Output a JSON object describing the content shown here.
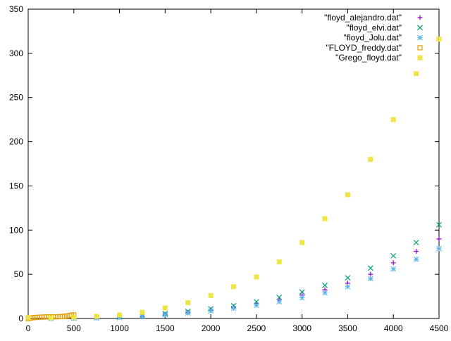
{
  "chart_data": {
    "type": "scatter",
    "title": "",
    "xlabel": "",
    "ylabel": "",
    "xlim": [
      0,
      4500
    ],
    "ylim": [
      0,
      350
    ],
    "xticks": [
      0,
      500,
      1000,
      1500,
      2000,
      2500,
      3000,
      3500,
      4000,
      4500
    ],
    "yticks": [
      0,
      50,
      100,
      150,
      200,
      250,
      300,
      350
    ],
    "grid": false,
    "legend_position": "top-right",
    "series": [
      {
        "name": "\"floyd_alejandro.dat\"",
        "marker": "plus",
        "color": "#9400d3",
        "x": [
          0,
          250,
          500,
          750,
          1000,
          1250,
          1500,
          1750,
          2000,
          2250,
          2500,
          2750,
          3000,
          3250,
          3500,
          3750,
          4000,
          4250,
          4500
        ],
        "y": [
          0,
          0.2,
          0.4,
          0.8,
          1.3,
          2.8,
          4.8,
          7,
          9.5,
          13,
          17,
          21,
          26.5,
          32.5,
          40,
          50,
          63,
          76,
          90
        ]
      },
      {
        "name": "\"floyd_elvi.dat\"",
        "marker": "cross",
        "color": "#009e73",
        "x": [
          0,
          250,
          500,
          750,
          1000,
          1250,
          1500,
          1750,
          2000,
          2250,
          2500,
          2750,
          3000,
          3250,
          3500,
          3750,
          4000,
          4250,
          4500
        ],
        "y": [
          0,
          0.2,
          0.5,
          1,
          1.7,
          3.2,
          5.5,
          8,
          11,
          14.5,
          19,
          24,
          30,
          37.5,
          46,
          57,
          71,
          86,
          106
        ]
      },
      {
        "name": "\"floyd_Jolu.dat\"",
        "marker": "star",
        "color": "#56b4e9",
        "x": [
          0,
          250,
          500,
          750,
          1000,
          1250,
          1500,
          1750,
          2000,
          2250,
          2500,
          2750,
          3000,
          3250,
          3500,
          3750,
          4000,
          4250,
          4500
        ],
        "y": [
          0,
          0.1,
          0.3,
          0.7,
          1.1,
          2.4,
          4.2,
          6.2,
          8.5,
          11.5,
          15,
          19,
          23.5,
          29,
          36,
          45,
          56,
          67,
          79
        ]
      },
      {
        "name": "\"FLOYD_freddy.dat\"",
        "marker": "square-open",
        "color": "#e69f00",
        "x": [
          0,
          25,
          50,
          75,
          100,
          125,
          150,
          175,
          200,
          225,
          250,
          275,
          300,
          325,
          350,
          375,
          400,
          425,
          450,
          475,
          500
        ],
        "y": [
          0,
          0.4,
          0.8,
          1.1,
          1.3,
          1.5,
          1.6,
          1.7,
          1.8,
          1.8,
          1.8,
          1.9,
          1.9,
          2,
          2.1,
          2.3,
          2.6,
          3,
          3.3,
          3.8,
          4.2
        ]
      },
      {
        "name": "\"Grego_floyd.dat\"",
        "marker": "square-filled",
        "color": "#f0e442",
        "x": [
          0,
          250,
          500,
          750,
          1000,
          1250,
          1500,
          1750,
          2000,
          2250,
          2500,
          2750,
          3000,
          3250,
          3500,
          3750,
          4000,
          4250,
          4500
        ],
        "y": [
          1,
          1,
          1.5,
          2.5,
          4,
          7,
          12,
          18,
          26,
          36,
          47,
          64,
          86,
          113,
          140,
          180,
          225,
          277,
          316
        ]
      }
    ]
  }
}
